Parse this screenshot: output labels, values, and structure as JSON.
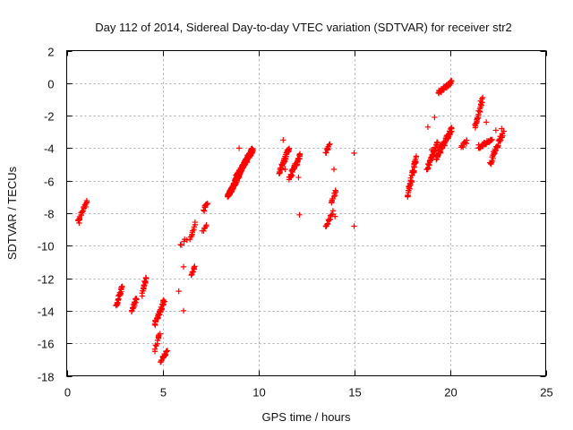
{
  "chart_data": {
    "type": "scatter",
    "title": "Day 112 of 2014, Sidereal Day-to-day VTEC variation (SDTVAR) for receiver str2",
    "xlabel": "GPS time / hours",
    "ylabel": "SDTVAR / TECUs",
    "xlim": [
      0,
      25
    ],
    "ylim": [
      -18,
      2
    ],
    "xticks": [
      0,
      5,
      10,
      15,
      20,
      25
    ],
    "yticks": [
      2,
      0,
      -2,
      -4,
      -6,
      -8,
      -10,
      -12,
      -14,
      -16,
      -18
    ],
    "grid": true,
    "marker": "plus",
    "color": "#ff0000",
    "series": [
      {
        "name": "str2",
        "clusters": [
          {
            "x": [
              0.6,
              1.05
            ],
            "y": [
              -8.5,
              -7.3
            ],
            "n": 22
          },
          {
            "x": [
              2.6,
              2.9
            ],
            "y": [
              -13.7,
              -12.5
            ],
            "n": 22
          },
          {
            "x": [
              3.4,
              3.65
            ],
            "y": [
              -14.0,
              -13.2
            ],
            "n": 16
          },
          {
            "x": [
              3.95,
              4.15
            ],
            "y": [
              -13.0,
              -11.9
            ],
            "n": 18
          },
          {
            "x": [
              4.6,
              5.1
            ],
            "y": [
              -14.8,
              -13.4
            ],
            "n": 40
          },
          {
            "x": [
              4.6,
              4.85
            ],
            "y": [
              -16.4,
              -15.4
            ],
            "n": 10
          },
          {
            "x": [
              4.9,
              5.25
            ],
            "y": [
              -17.1,
              -16.5
            ],
            "n": 18
          },
          {
            "x": [
              5.95,
              6.25
            ],
            "y": [
              -10.0,
              -9.6
            ],
            "n": 5
          },
          {
            "x": [
              6.5,
              6.7
            ],
            "y": [
              -11.8,
              -11.2
            ],
            "n": 8
          },
          {
            "x": [
              6.45,
              6.7
            ],
            "y": [
              -9.6,
              -8.6
            ],
            "n": 10
          },
          {
            "x": [
              7.1,
              7.3
            ],
            "y": [
              -9.1,
              -8.7
            ],
            "n": 6
          },
          {
            "x": [
              7.15,
              7.35
            ],
            "y": [
              -7.8,
              -7.4
            ],
            "n": 10
          },
          {
            "x": [
              8.4,
              9.1
            ],
            "y": [
              -7.0,
              -5.4
            ],
            "n": 130
          },
          {
            "x": [
              8.85,
              9.7
            ],
            "y": [
              -5.8,
              -4.1
            ],
            "n": 150
          },
          {
            "x": [
              11.1,
              11.6
            ],
            "y": [
              -5.5,
              -4.0
            ],
            "n": 45
          },
          {
            "x": [
              11.6,
              12.2
            ],
            "y": [
              -5.9,
              -4.4
            ],
            "n": 40
          },
          {
            "x": [
              13.5,
              13.75
            ],
            "y": [
              -4.3,
              -3.8
            ],
            "n": 8
          },
          {
            "x": [
              13.5,
              13.9
            ],
            "y": [
              -8.9,
              -7.9
            ],
            "n": 14
          },
          {
            "x": [
              13.8,
              14.05
            ],
            "y": [
              -7.4,
              -6.6
            ],
            "n": 10
          },
          {
            "x": [
              17.8,
              18.25
            ],
            "y": [
              -6.8,
              -4.6
            ],
            "n": 45
          },
          {
            "x": [
              18.8,
              19.35
            ],
            "y": [
              -5.3,
              -3.7
            ],
            "n": 40
          },
          {
            "x": [
              19.3,
              20.1
            ],
            "y": [
              -4.6,
              -2.8
            ],
            "n": 55
          },
          {
            "x": [
              19.4,
              20.1
            ],
            "y": [
              -0.6,
              0.1
            ],
            "n": 40
          },
          {
            "x": [
              20.6,
              20.9
            ],
            "y": [
              -4.0,
              -3.5
            ],
            "n": 10
          },
          {
            "x": [
              21.3,
              21.7
            ],
            "y": [
              -2.7,
              -1.0
            ],
            "n": 25
          },
          {
            "x": [
              21.5,
              22.2
            ],
            "y": [
              -4.0,
              -3.4
            ],
            "n": 30
          },
          {
            "x": [
              22.1,
              22.8
            ],
            "y": [
              -4.9,
              -3.0
            ],
            "n": 40
          }
        ],
        "points": [
          {
            "x": 0.65,
            "y": -8.6
          },
          {
            "x": 1.0,
            "y": -7.4
          },
          {
            "x": 4.8,
            "y": -15.5
          },
          {
            "x": 5.85,
            "y": -12.8
          },
          {
            "x": 6.1,
            "y": -14.0
          },
          {
            "x": 6.1,
            "y": -11.3
          },
          {
            "x": 6.6,
            "y": -11.6
          },
          {
            "x": 7.25,
            "y": -7.5
          },
          {
            "x": 9.0,
            "y": -4.0
          },
          {
            "x": 11.3,
            "y": -3.5
          },
          {
            "x": 11.4,
            "y": -5.3
          },
          {
            "x": 12.15,
            "y": -8.1
          },
          {
            "x": 12.1,
            "y": -5.8
          },
          {
            "x": 13.6,
            "y": -4.0
          },
          {
            "x": 13.95,
            "y": -5.3
          },
          {
            "x": 14.0,
            "y": -6.9
          },
          {
            "x": 14.0,
            "y": -8.2
          },
          {
            "x": 15.0,
            "y": -4.3
          },
          {
            "x": 15.0,
            "y": -8.8
          },
          {
            "x": 18.85,
            "y": -2.7
          },
          {
            "x": 19.2,
            "y": -2.1
          },
          {
            "x": 19.05,
            "y": -4.1
          },
          {
            "x": 20.7,
            "y": -3.7
          },
          {
            "x": 21.5,
            "y": -3.8
          },
          {
            "x": 21.6,
            "y": -1.1
          },
          {
            "x": 21.9,
            "y": -2.4
          },
          {
            "x": 22.4,
            "y": -2.9
          },
          {
            "x": 22.7,
            "y": -2.8
          }
        ]
      }
    ]
  }
}
